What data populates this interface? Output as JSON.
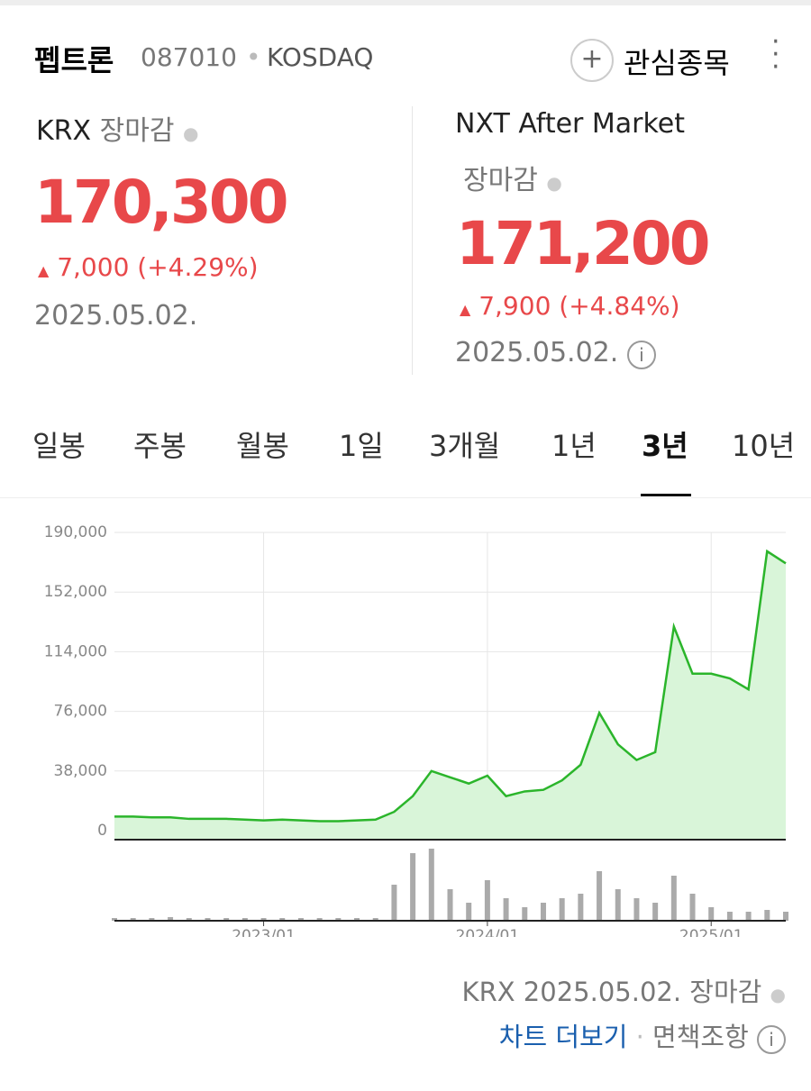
{
  "header": {
    "name": "펩트론",
    "code": "087010",
    "market": "KOSDAQ",
    "watch": "관심종목"
  },
  "krx": {
    "venue": "KRX",
    "status": "장마감",
    "price": "170,300",
    "change": "7,000",
    "change_pct": "(+4.29%)",
    "date": "2025.05.02."
  },
  "nxt": {
    "venue": "NXT After Market",
    "status": "장마감",
    "price": "171,200",
    "change": "7,900",
    "change_pct": "(+4.84%)",
    "date": "2025.05.02."
  },
  "tabs": [
    "일봉",
    "주봉",
    "월봉",
    "1일",
    "3개월",
    "1년",
    "3년",
    "10년"
  ],
  "active_tab": 6,
  "chart_data": {
    "type": "line",
    "color": "#2bb52b",
    "fill": "#d9f5d9",
    "categories": [
      null,
      null,
      null,
      null,
      null,
      null,
      null,
      null,
      "2023/01",
      null,
      null,
      null,
      null,
      null,
      null,
      null,
      null,
      null,
      null,
      null,
      "2024/01",
      null,
      null,
      null,
      null,
      null,
      null,
      null,
      null,
      null,
      null,
      null,
      "2025/01",
      null,
      null,
      null,
      null
    ],
    "values": [
      9000,
      9000,
      8500,
      8500,
      7500,
      7500,
      7500,
      7000,
      6500,
      7000,
      6500,
      6000,
      6000,
      6500,
      7000,
      12000,
      22000,
      38000,
      34000,
      30000,
      35000,
      22000,
      25000,
      26000,
      32000,
      42000,
      75000,
      55000,
      45000,
      50000,
      130000,
      100000,
      100000,
      97000,
      90000,
      178000,
      170300
    ],
    "volume": [
      3,
      3,
      3,
      4,
      3,
      3,
      3,
      3,
      3,
      3,
      3,
      3,
      3,
      3,
      3,
      40,
      75,
      80,
      35,
      20,
      45,
      25,
      15,
      20,
      25,
      30,
      55,
      35,
      25,
      20,
      50,
      30,
      15,
      10,
      10,
      12,
      10
    ],
    "ylim": [
      0,
      190000
    ],
    "yticks": [
      0,
      {
        "value": 38000,
        "label": "38,000"
      },
      {
        "value": 76000,
        "label": "76,000"
      },
      {
        "value": 114000,
        "label": "114,000"
      },
      {
        "value": 152000,
        "label": "152,000"
      },
      {
        "value": 190000,
        "label": "190,000"
      }
    ],
    "grid": true
  },
  "footer": {
    "source": "KRX 2025.05.02. 장마감",
    "more": "차트 더보기",
    "disclaimer": "면책조항"
  }
}
